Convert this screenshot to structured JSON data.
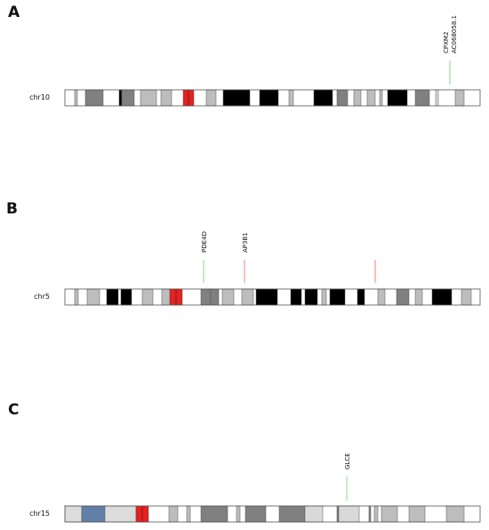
{
  "panels": [
    {
      "letter": "A",
      "chromosome": "chr10",
      "genes": [
        {
          "lines": [
            "CPXM2",
            "AC068058.1"
          ],
          "color": "#7fe07f"
        }
      ]
    },
    {
      "letter": "B",
      "chromosome": "chr5",
      "genes": [
        {
          "lines": [
            "PDE4D"
          ],
          "color": "#7fe07f"
        },
        {
          "lines": [
            "AP3B1"
          ],
          "color": "#f08080"
        },
        {
          "lines": [],
          "color": "#f08080"
        }
      ]
    },
    {
      "letter": "C",
      "chromosome": "chr15",
      "genes": [
        {
          "lines": [
            "GLCE"
          ],
          "color": "#7fe07f"
        }
      ]
    }
  ],
  "colors": {
    "gneg": "#ffffff",
    "gpos25": "#d9d9d9",
    "gpos50": "#bdbdbd",
    "gpos75": "#808080",
    "gpos100": "#000000",
    "acen": "#e32222",
    "gvar": "#6080a8",
    "stalk": "#dcdcdc",
    "outline": "#555555"
  }
}
